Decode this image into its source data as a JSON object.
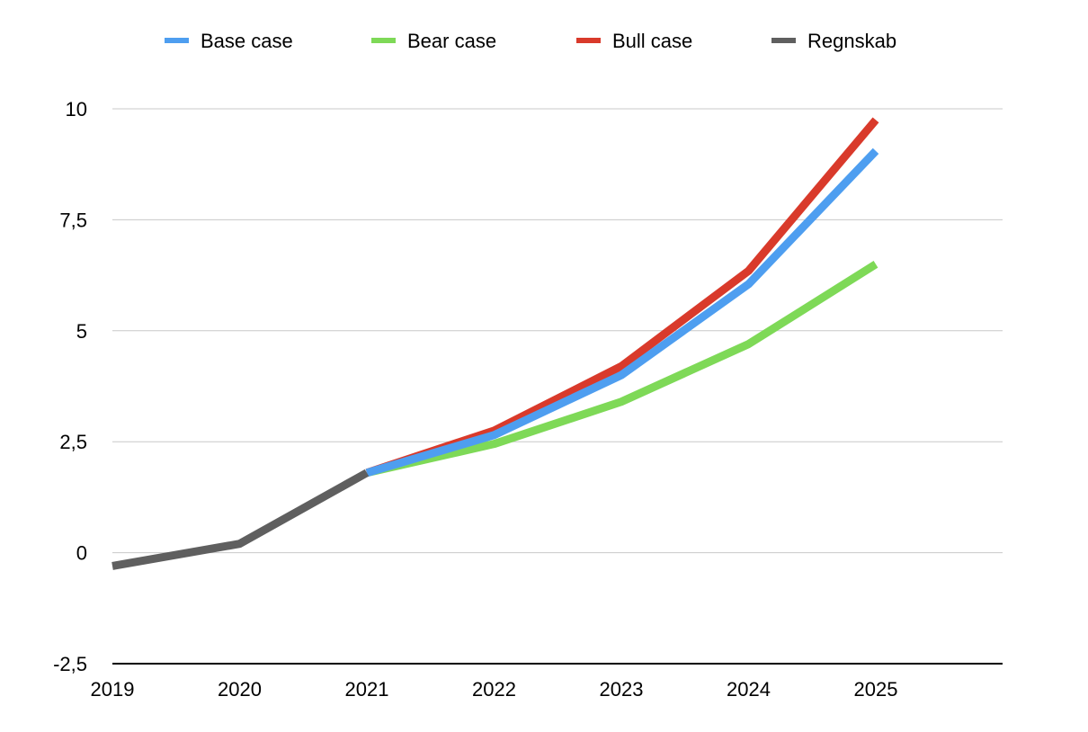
{
  "chart_data": {
    "type": "line",
    "title": "",
    "xlabel": "",
    "ylabel": "",
    "x": [
      "2019",
      "2020",
      "2021",
      "2022",
      "2023",
      "2024",
      "2025"
    ],
    "ylim": [
      -2.5,
      10
    ],
    "yticks": [
      "-2,5",
      "0",
      "2,5",
      "5",
      "7,5",
      "10"
    ],
    "ytick_values": [
      -2.5,
      0,
      2.5,
      5,
      7.5,
      10
    ],
    "grid": true,
    "legend_position": "top",
    "series": [
      {
        "name": "Base case",
        "color": "#4e9ef0",
        "values": [
          null,
          null,
          1.8,
          2.65,
          4.0,
          6.05,
          9.05
        ]
      },
      {
        "name": "Bear case",
        "color": "#7ed957",
        "values": [
          null,
          null,
          1.8,
          2.45,
          3.4,
          4.7,
          6.5
        ]
      },
      {
        "name": "Bull case",
        "color": "#d93a2b",
        "values": [
          null,
          null,
          1.8,
          2.75,
          4.2,
          6.35,
          9.75
        ]
      },
      {
        "name": "Regnskab",
        "color": "#5f5f5f",
        "values": [
          -0.3,
          0.2,
          1.8,
          null,
          null,
          null,
          null
        ]
      }
    ]
  }
}
